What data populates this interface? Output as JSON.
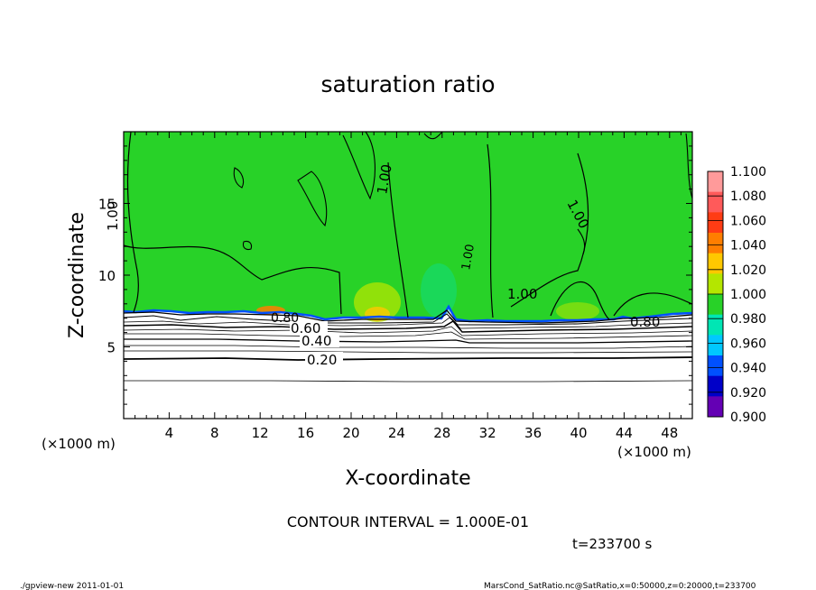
{
  "chart_data": {
    "type": "heatmap",
    "title": "saturation ratio",
    "xlabel": "X-coordinate",
    "ylabel": "Z-coordinate",
    "x_unit_left": "(×1000 m)",
    "x_unit_right": "(×1000 m)",
    "xlim": [
      0,
      50
    ],
    "ylim": [
      0,
      20
    ],
    "xticks": [
      "4",
      "8",
      "12",
      "16",
      "20",
      "24",
      "28",
      "32",
      "36",
      "40",
      "44",
      "48"
    ],
    "yticks": [
      "5",
      "10",
      "15"
    ],
    "colorbar": {
      "levels": [
        "1.100",
        "1.080",
        "1.060",
        "1.040",
        "1.020",
        "1.000",
        "0.980",
        "0.960",
        "0.940",
        "0.920",
        "0.900"
      ],
      "colors": [
        "#ff9a9a",
        "#ff5a5a",
        "#ff3c14",
        "#ff7e00",
        "#ffc800",
        "#b4e600",
        "#28d228",
        "#00e6b4",
        "#00c8ff",
        "#0050ff",
        "#0000c8",
        "#6400b4"
      ]
    },
    "contour_labels": [
      "0.20",
      "0.40",
      "0.60",
      "0.80",
      "1.00",
      "1.00",
      "1.00",
      "1.00",
      "1.00",
      "0.80"
    ],
    "grid": false
  },
  "contour_interval": "CONTOUR INTERVAL = 1.000E-01",
  "time_label": "t=233700 s",
  "footer_left": "./gpview-new   2011-01-01",
  "footer_right": "MarsCond_SatRatio.nc@SatRatio,x=0:50000,z=0:20000,t=233700"
}
